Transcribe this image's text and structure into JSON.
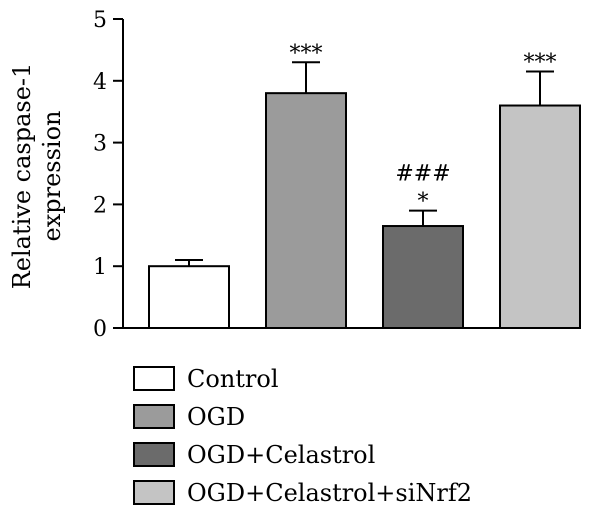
{
  "chart_data": {
    "type": "bar",
    "title": "",
    "xlabel": "",
    "ylabel_lines": [
      "Relative caspase-1",
      "expression"
    ],
    "ylim": [
      0,
      5
    ],
    "yticks": [
      "0",
      "1",
      "2",
      "3",
      "4",
      "5"
    ],
    "grid": false,
    "legend_position": "bottom",
    "categories": [
      "Control",
      "OGD",
      "OGD+Celastrol",
      "OGD+Celastrol+siNrf2"
    ],
    "values": [
      1.0,
      3.8,
      1.65,
      3.6
    ],
    "errors": [
      0.1,
      0.5,
      0.25,
      0.55
    ],
    "colors": [
      "#ffffff",
      "#9b9b9b",
      "#6b6b6b",
      "#c4c4c4"
    ],
    "annotations": [
      [],
      [
        "***"
      ],
      [
        "###",
        "*"
      ],
      [
        "***"
      ]
    ]
  }
}
